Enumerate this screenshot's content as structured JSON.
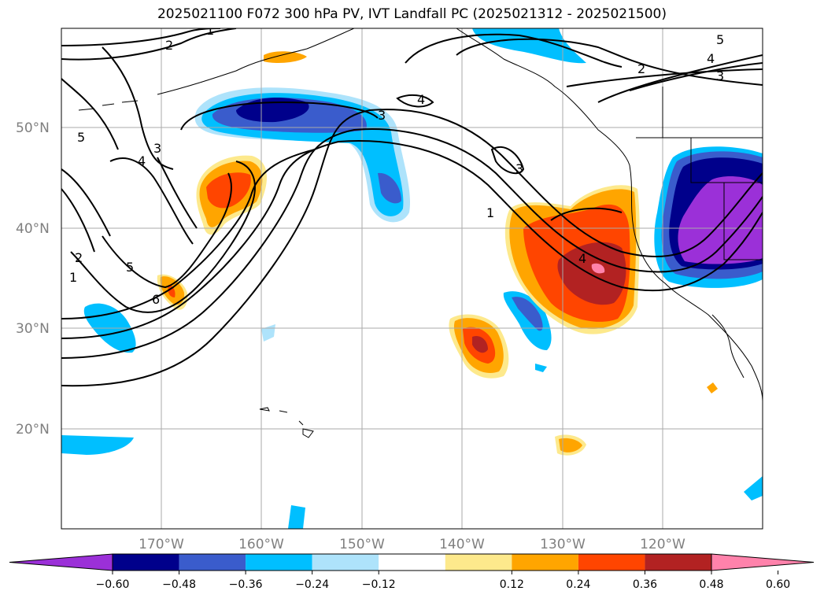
{
  "title": "2025021100 F072 300 hPa PV, IVT Landfall PC (2025021312 - 2025021500)",
  "map": {
    "lat_labels": [
      "50°N",
      "40°N",
      "30°N",
      "20°N"
    ],
    "lon_labels": [
      "170°W",
      "160°W",
      "150°W",
      "140°W",
      "130°W",
      "120°W"
    ],
    "contour_labels": [
      "1",
      "2",
      "3",
      "4",
      "5",
      "6"
    ]
  },
  "colorbar": {
    "ticks": [
      "−0.60",
      "−0.48",
      "−0.36",
      "−0.24",
      "−0.12",
      "0.12",
      "0.24",
      "0.36",
      "0.48",
      "0.60"
    ],
    "colors": [
      "#9b30d8",
      "#00008b",
      "#3a5ccc",
      "#00bfff",
      "#aee3fb",
      "#ffffff",
      "#fde98c",
      "#ffa500",
      "#ff4500",
      "#b22222",
      "#ff82ab"
    ]
  }
}
